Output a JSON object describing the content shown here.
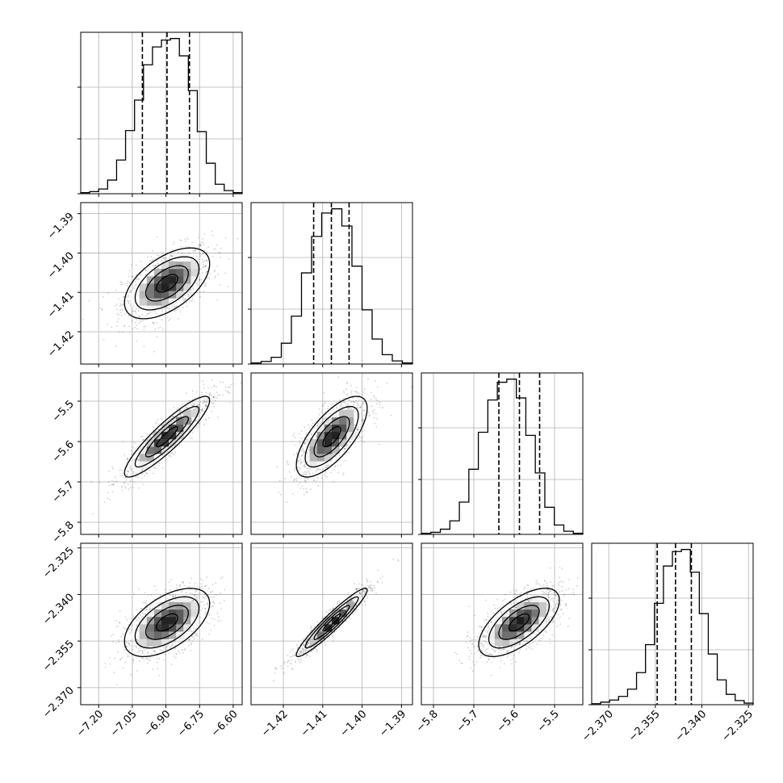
{
  "chart_data": {
    "type": "corner",
    "grid": true,
    "parameters": [
      {
        "range": [
          -7.28,
          -6.56
        ],
        "ticks": [
          -7.2,
          -7.05,
          -6.9,
          -6.75,
          -6.6
        ],
        "tick_labels": [
          "−7.20",
          "−7.05",
          "−6.90",
          "−6.75",
          "−6.60"
        ],
        "quantiles": [
          -7.005,
          -6.895,
          -6.795
        ],
        "mean": -6.895,
        "sd": 0.095
      },
      {
        "range": [
          -1.4282,
          -1.3872
        ],
        "ticks": [
          -1.42,
          -1.41,
          -1.4,
          -1.39
        ],
        "tick_labels": [
          "−1.42",
          "−1.41",
          "−1.40",
          "−1.39"
        ],
        "quantiles": [
          -1.4123,
          -1.4078,
          -1.4033
        ],
        "mean": -1.4077,
        "sd": 0.0045
      },
      {
        "range": [
          -5.83,
          -5.43
        ],
        "ticks": [
          -5.8,
          -5.7,
          -5.6,
          -5.5
        ],
        "tick_labels": [
          "−5.8",
          "−5.7",
          "−5.6",
          "−5.5"
        ],
        "quantiles": [
          -5.638,
          -5.587,
          -5.537
        ],
        "mean": -5.588,
        "sd": 0.05
      },
      {
        "range": [
          -2.3755,
          -2.3235
        ],
        "ticks": [
          -2.37,
          -2.355,
          -2.34,
          -2.325
        ],
        "tick_labels": [
          "−2.370",
          "−2.355",
          "−2.340",
          "−2.325"
        ],
        "quantiles": [
          -2.3544,
          -2.3485,
          -2.3434
        ],
        "mean": -2.349,
        "sd": 0.0055
      }
    ],
    "histogram_counts": [
      [
        2,
        4,
        9,
        26,
        64,
        120,
        178,
        245,
        279,
        292,
        295,
        262,
        196,
        118,
        58,
        18,
        6,
        2
      ],
      [
        2,
        5,
        13,
        40,
        92,
        175,
        245,
        290,
        298,
        265,
        188,
        104,
        48,
        18,
        6,
        2
      ],
      [
        2,
        4,
        10,
        26,
        62,
        125,
        196,
        258,
        292,
        298,
        262,
        190,
        118,
        52,
        18,
        6,
        2
      ],
      [
        2,
        5,
        9,
        16,
        30,
        62,
        116,
        196,
        268,
        296,
        300,
        256,
        176,
        98,
        48,
        20,
        8,
        3
      ]
    ],
    "correlations": [
      [
        1,
        0.55,
        0.9,
        0.55
      ],
      [
        0.55,
        1,
        0.7,
        0.95
      ],
      [
        0.9,
        0.7,
        1,
        0.65
      ],
      [
        0.55,
        0.95,
        0.65,
        1
      ]
    ],
    "contour_levels_sigma": [
      0.5,
      1.0,
      1.5,
      2.0
    ],
    "quantile_line_style": "dashed",
    "colors": {
      "line": "#000000",
      "grid": "#b0b0b0",
      "points": "#000000"
    }
  }
}
